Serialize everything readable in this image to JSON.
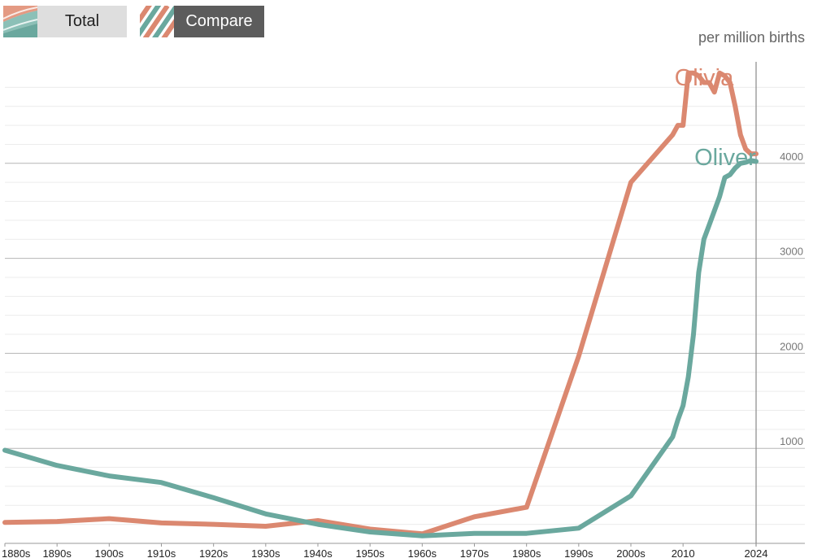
{
  "toggles": {
    "total_label": "Total",
    "compare_label": "Compare",
    "active": "compare"
  },
  "colors": {
    "olivia": "#db8870",
    "oliver": "#6aa89e",
    "grid_major": "#b5b5b5",
    "grid_minor": "#ececec",
    "axis_text": "#777777"
  },
  "chart_data": {
    "type": "line",
    "ylabel": "per million births",
    "ylim": [
      0,
      5000
    ],
    "yticks": [
      1000,
      2000,
      3000,
      4000
    ],
    "xlim": [
      1880,
      2024
    ],
    "xticks": [
      {
        "value": 1880,
        "label": "1880s"
      },
      {
        "value": 1890,
        "label": "1890s"
      },
      {
        "value": 1900,
        "label": "1900s"
      },
      {
        "value": 1910,
        "label": "1910s"
      },
      {
        "value": 1920,
        "label": "1920s"
      },
      {
        "value": 1930,
        "label": "1930s"
      },
      {
        "value": 1940,
        "label": "1940s"
      },
      {
        "value": 1950,
        "label": "1950s"
      },
      {
        "value": 1960,
        "label": "1960s"
      },
      {
        "value": 1970,
        "label": "1970s"
      },
      {
        "value": 1980,
        "label": "1980s"
      },
      {
        "value": 1990,
        "label": "1990s"
      },
      {
        "value": 2000,
        "label": "2000s"
      },
      {
        "value": 2010,
        "label": "2010"
      },
      {
        "value": 2024,
        "label": "2024"
      }
    ],
    "series": [
      {
        "name": "Olivia",
        "color": "#db8870",
        "x": [
          1880,
          1890,
          1900,
          1910,
          1920,
          1930,
          1940,
          1950,
          1960,
          1970,
          1980,
          1990,
          2000,
          2008,
          2009,
          2010,
          2011,
          2012,
          2013,
          2014,
          2015,
          2016,
          2017,
          2018,
          2019,
          2020,
          2021,
          2022,
          2023,
          2024
        ],
        "y": [
          220,
          230,
          260,
          215,
          200,
          180,
          240,
          150,
          100,
          280,
          380,
          1970,
          3800,
          4300,
          4400,
          4400,
          4950,
          4950,
          4920,
          4850,
          4850,
          4750,
          4950,
          4920,
          4850,
          4600,
          4300,
          4150,
          4100,
          4100
        ]
      },
      {
        "name": "Oliver",
        "color": "#6aa89e",
        "x": [
          1880,
          1890,
          1900,
          1910,
          1920,
          1930,
          1940,
          1950,
          1960,
          1970,
          1980,
          1990,
          2000,
          2008,
          2009,
          2010,
          2011,
          2012,
          2013,
          2014,
          2015,
          2016,
          2017,
          2018,
          2019,
          2020,
          2021,
          2022,
          2023,
          2024
        ],
        "y": [
          980,
          820,
          710,
          640,
          480,
          310,
          200,
          120,
          80,
          105,
          105,
          160,
          500,
          1120,
          1300,
          1450,
          1750,
          2200,
          2850,
          3200,
          3350,
          3500,
          3650,
          3850,
          3880,
          3950,
          4000,
          4010,
          4030,
          4020
        ]
      }
    ]
  }
}
